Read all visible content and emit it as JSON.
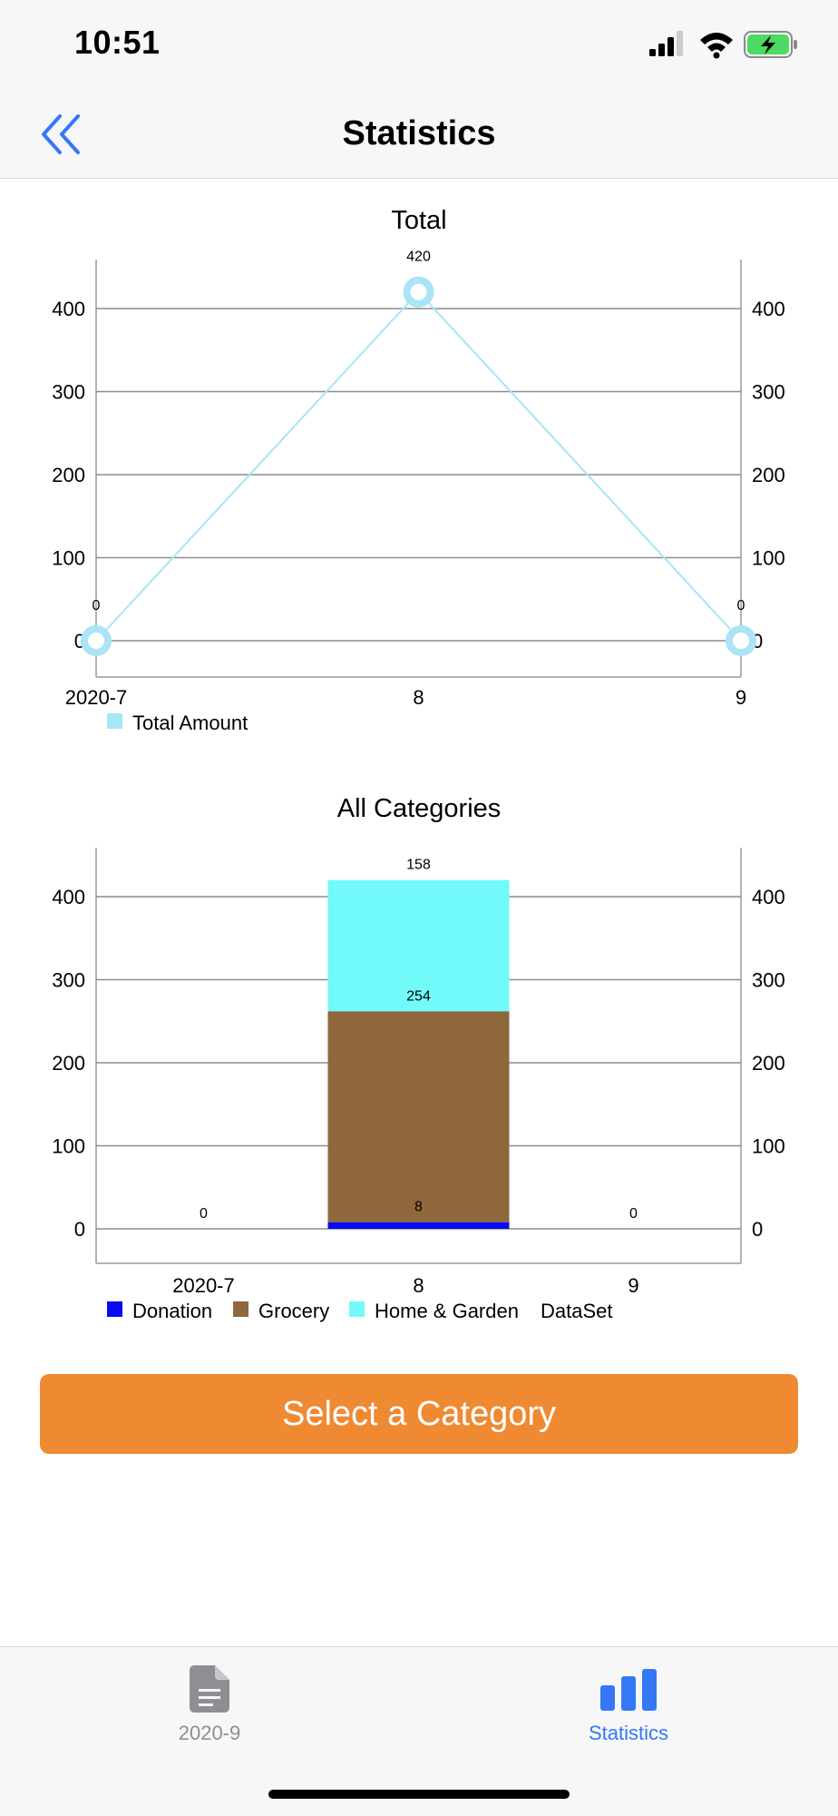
{
  "status_bar": {
    "time": "10:51"
  },
  "nav": {
    "title": "Statistics"
  },
  "total_chart": {
    "title": "Total",
    "legend": [
      {
        "label": "Total Amount",
        "color": "#a9e4f7"
      }
    ]
  },
  "categories_chart": {
    "title": "All Categories",
    "legend": [
      {
        "label": "Donation",
        "color": "#0a0af0"
      },
      {
        "label": "Grocery",
        "color": "#8e673d"
      },
      {
        "label": "Home & Garden",
        "color": "#72fafa"
      },
      {
        "label": "DataSet",
        "color": ""
      }
    ]
  },
  "chart_data": [
    {
      "type": "line",
      "title": "Total",
      "categories": [
        "2020-7",
        "8",
        "9"
      ],
      "series": [
        {
          "name": "Total Amount",
          "values": [
            0,
            420,
            0
          ],
          "color": "#a9e4f7"
        }
      ],
      "ylim": [
        -40,
        460
      ],
      "yticks": [
        0,
        100,
        200,
        300,
        400
      ],
      "data_labels": [
        "0",
        "420",
        "0"
      ],
      "grid": true,
      "legend": "bottom-left"
    },
    {
      "type": "bar",
      "stacked": true,
      "title": "All Categories",
      "categories": [
        "2020-7",
        "8",
        "9"
      ],
      "series": [
        {
          "name": "Donation",
          "values": [
            0,
            8,
            0
          ],
          "color": "#0a0af0"
        },
        {
          "name": "Grocery",
          "values": [
            0,
            254,
            0
          ],
          "color": "#8e673d"
        },
        {
          "name": "Home & Garden",
          "values": [
            0,
            158,
            0
          ],
          "color": "#72fafa"
        }
      ],
      "bar_labels": [
        {
          "category": "2020-7",
          "text": "0"
        },
        {
          "category": "9",
          "text": "0"
        }
      ],
      "ylim": [
        -40,
        460
      ],
      "yticks": [
        0,
        100,
        200,
        300,
        400
      ],
      "grid": true,
      "legend": "bottom-left"
    }
  ],
  "actions": {
    "select_category": "Select a Category"
  },
  "tab_bar": {
    "tabs": [
      {
        "label": "2020-9",
        "icon": "document-icon",
        "color": "#8e8e93",
        "active": false
      },
      {
        "label": "Statistics",
        "icon": "bar-chart-icon",
        "color": "#3478f6",
        "active": true
      }
    ]
  }
}
